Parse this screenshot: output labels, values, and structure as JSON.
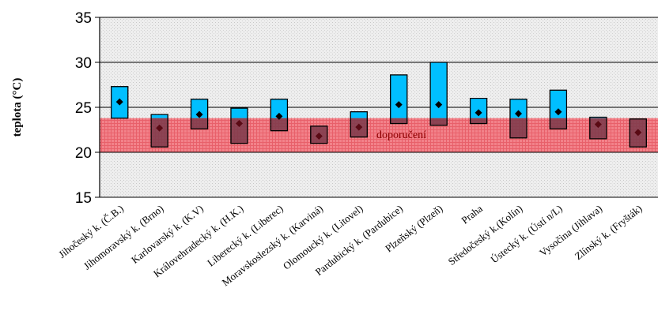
{
  "chart_data": {
    "type": "range-bar",
    "ylabel": "teplota (°C)",
    "ylim": [
      15,
      35
    ],
    "yticks": [
      15,
      20,
      25,
      30,
      35
    ],
    "grid": true,
    "recommended_band": {
      "label": "doporučení",
      "low": 20,
      "high": 23.8,
      "color": "#f0727a"
    },
    "colors": {
      "above_band": "#00bfff",
      "in_band": "#7a3a4a",
      "marker": "#000000",
      "marker_in_band": "#5a0a14",
      "grid": "#000000"
    },
    "categories": [
      "Jihočeský k. (Č.B.)",
      "Jihomoravský k. (Brno)",
      "Karlovarský k. (K.V)",
      "Královehradecký k. (H.K.)",
      "Liberecký k. (Liberec)",
      "Moravskoslezský k. (Karviná)",
      "Olomoucký k. (Litovel)",
      "Pardubický k. (Pardubice)",
      "Plzeňský (Plzeň)",
      "Praha",
      "Středočeský k.(Kolín)",
      "Ústecký k. (Ústí n/L)",
      "Vysočina (Jihlava)",
      "Zlínský k. (Fryšták)"
    ],
    "series": [
      {
        "name": "",
        "min": [
          23.8,
          20.6,
          22.6,
          21.0,
          22.4,
          21.0,
          21.7,
          23.2,
          23.0,
          23.2,
          21.6,
          22.6,
          21.5,
          20.6
        ]
      },
      {
        "name": "",
        "max": [
          27.3,
          24.2,
          25.9,
          24.9,
          25.9,
          22.9,
          24.5,
          28.6,
          30.0,
          26.0,
          25.9,
          26.9,
          23.9,
          23.7
        ]
      },
      {
        "name": "",
        "mean": [
          25.6,
          22.7,
          24.2,
          23.2,
          24.0,
          21.8,
          22.8,
          25.3,
          25.3,
          24.4,
          24.3,
          24.5,
          23.1,
          22.2
        ]
      }
    ]
  }
}
